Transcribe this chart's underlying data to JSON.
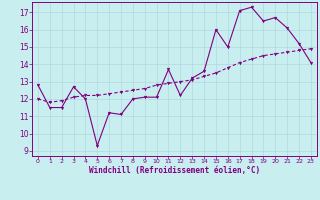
{
  "xlabel": "Windchill (Refroidissement éolien,°C)",
  "background_color": "#c8eef0",
  "line_color": "#800080",
  "grid_color": "#b0d8dc",
  "x_ticks": [
    0,
    1,
    2,
    3,
    4,
    5,
    6,
    7,
    8,
    9,
    10,
    11,
    12,
    13,
    14,
    15,
    16,
    17,
    18,
    19,
    20,
    21,
    22,
    23
  ],
  "y_ticks": [
    9,
    10,
    11,
    12,
    13,
    14,
    15,
    16,
    17
  ],
  "ylim": [
    8.7,
    17.6
  ],
  "xlim": [
    -0.5,
    23.5
  ],
  "line1_x": [
    0,
    1,
    2,
    3,
    4,
    5,
    6,
    7,
    8,
    9,
    10,
    11,
    12,
    13,
    14,
    15,
    16,
    17,
    18,
    19,
    20,
    21,
    22,
    23
  ],
  "line1_y": [
    12.8,
    11.5,
    11.5,
    12.7,
    12.0,
    9.3,
    11.2,
    11.1,
    12.0,
    12.1,
    12.1,
    13.7,
    12.2,
    13.2,
    13.6,
    16.0,
    15.0,
    17.1,
    17.3,
    16.5,
    16.7,
    16.1,
    15.2,
    14.1
  ],
  "line2_x": [
    0,
    1,
    2,
    3,
    4,
    5,
    6,
    7,
    8,
    9,
    10,
    11,
    12,
    13,
    14,
    15,
    16,
    17,
    18,
    19,
    20,
    21,
    22,
    23
  ],
  "line2_y": [
    12.0,
    11.8,
    11.9,
    12.1,
    12.2,
    12.2,
    12.3,
    12.4,
    12.5,
    12.6,
    12.8,
    12.9,
    13.0,
    13.1,
    13.3,
    13.5,
    13.8,
    14.1,
    14.3,
    14.5,
    14.6,
    14.7,
    14.8,
    14.9
  ]
}
